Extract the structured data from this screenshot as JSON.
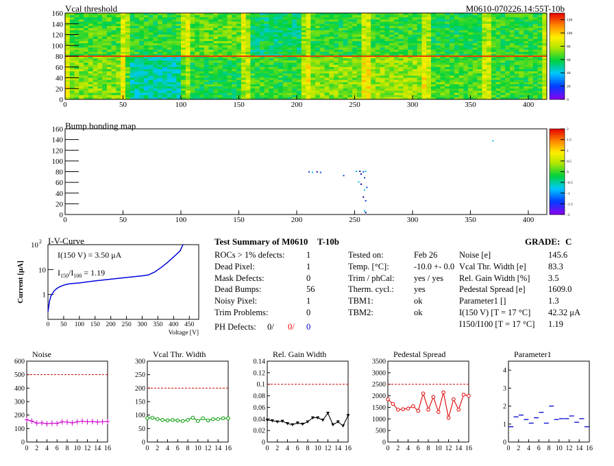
{
  "module_id": "M0610-070226.14:55T-10b",
  "vcal_map": {
    "title": "Vcal threshold",
    "x_ticks": [
      "0",
      "50",
      "100",
      "150",
      "200",
      "250",
      "300",
      "350",
      "400"
    ],
    "y_ticks": [
      "0",
      "20",
      "40",
      "60",
      "80",
      "100",
      "120",
      "140",
      "160"
    ],
    "palette_ticks": [
      "120",
      "100",
      "80",
      "60",
      "40",
      "20",
      "0"
    ]
  },
  "bump_map": {
    "title": "Bump bonding map",
    "x_ticks": [
      "0",
      "50",
      "100",
      "150",
      "200",
      "250",
      "300",
      "350",
      "400"
    ],
    "y_ticks": [
      "0",
      "20",
      "40",
      "60",
      "80",
      "100",
      "120",
      "140",
      "160"
    ],
    "palette_ticks": [
      "2",
      "1.5",
      "1",
      "0.5",
      "0",
      "-0.5",
      "-1",
      "-1.5",
      "-2"
    ]
  },
  "iv": {
    "title": "I-V-Curve",
    "ylabel": "Current [μA]",
    "xlabel": "Voltage [V]",
    "i150_label": "I(150 V) = 3.50 μA",
    "ratio_prefix": "I",
    "ratio_sub1": "150",
    "ratio_mid": "/I",
    "ratio_sub2": "100",
    "ratio_value": "=  1.19",
    "x_ticks": [
      "0",
      "50",
      "100",
      "150",
      "200",
      "250",
      "300",
      "350",
      "400",
      "450"
    ],
    "y_exp": "2"
  },
  "summary": {
    "title": "Test Summary of M0610",
    "tag": "T-10b",
    "grade_label": "GRADE:",
    "grade": "C",
    "left": [
      {
        "label": "ROCs > 1% defects:",
        "value": "1"
      },
      {
        "label": "Dead Pixel:",
        "value": "1"
      },
      {
        "label": "Mask Defects:",
        "value": "0"
      },
      {
        "label": "Dead Bumps:",
        "value": "56"
      },
      {
        "label": "Noisy Pixel:",
        "value": "1"
      },
      {
        "label": "Trim Problems:",
        "value": "0"
      }
    ],
    "ph_label": "PH Defects:",
    "ph_values": [
      "0/",
      "0/",
      "0"
    ],
    "ph_colors": [
      "#000000",
      "#ff0000",
      "#0000cc"
    ],
    "mid": [
      {
        "label": "Tested on:",
        "value": "Feb 26"
      },
      {
        "label": "Temp. [°C]:",
        "value": "-10.0 +- 0.0"
      },
      {
        "label": "Trim / phCal:",
        "value": "yes / yes"
      },
      {
        "label": "Therm. cycl.:",
        "value": "yes"
      },
      {
        "label": "TBM1:",
        "value": "ok"
      },
      {
        "label": "TBM2:",
        "value": "ok"
      }
    ],
    "right": [
      {
        "label": "Noise [e]",
        "value": "145.6"
      },
      {
        "label": "Vcal Thr. Width [e]",
        "value": "83.3"
      },
      {
        "label": "Rel. Gain Width [%]",
        "value": "3.5"
      },
      {
        "label": "Pedestal Spread [e]",
        "value": "1609.0"
      },
      {
        "label": "Parameter1 []",
        "value": "1.3"
      },
      {
        "label": "I(150 V) [T = 17 °C]",
        "value": "42.32 μA"
      },
      {
        "label": "I150/I100  [T = 17 °C]",
        "value": "1.19"
      }
    ]
  },
  "chart_data": [
    {
      "type": "heatmap",
      "title": "Vcal threshold",
      "x_range": [
        0,
        416
      ],
      "y_range": [
        0,
        160
      ],
      "z_range": [
        0,
        130
      ],
      "rocs_top_row_values": [
        65,
        62,
        68,
        55,
        62,
        63,
        60,
        62
      ],
      "rocs_bottom_row_values": [
        72,
        48,
        60,
        63,
        73,
        75,
        66,
        63
      ]
    },
    {
      "type": "scatter",
      "title": "Bump bonding map",
      "x_range": [
        0,
        416
      ],
      "y_range": [
        0,
        160
      ],
      "z_range": [
        -2,
        2
      ],
      "points": [
        [
          210,
          79
        ],
        [
          213,
          78
        ],
        [
          217,
          79
        ],
        [
          220,
          78
        ],
        [
          251,
          80
        ],
        [
          254,
          80
        ],
        [
          257,
          79
        ],
        [
          259,
          80
        ],
        [
          255,
          75
        ],
        [
          258,
          68
        ],
        [
          253,
          60
        ],
        [
          255,
          56
        ],
        [
          260,
          50
        ],
        [
          258,
          45
        ],
        [
          257,
          32
        ],
        [
          259,
          25
        ],
        [
          258,
          6
        ],
        [
          259,
          3
        ],
        [
          240,
          72
        ],
        [
          369,
          137
        ]
      ]
    },
    {
      "type": "line",
      "title": "I-V-Curve",
      "xlabel": "Voltage [V]",
      "ylabel": "Current [μA]",
      "yscale": "log",
      "x_ticks_range": [
        0,
        450
      ],
      "y_range": [
        0.1,
        100
      ],
      "points": [
        [
          0,
          0.2
        ],
        [
          5,
          0.55
        ],
        [
          10,
          0.9
        ],
        [
          20,
          1.4
        ],
        [
          30,
          1.8
        ],
        [
          40,
          2.1
        ],
        [
          50,
          2.35
        ],
        [
          60,
          2.55
        ],
        [
          70,
          2.7
        ],
        [
          100,
          2.9
        ],
        [
          150,
          3.5
        ],
        [
          200,
          4.1
        ],
        [
          250,
          4.8
        ],
        [
          300,
          5.6
        ],
        [
          320,
          6.1
        ],
        [
          340,
          8
        ],
        [
          360,
          12
        ],
        [
          380,
          19
        ],
        [
          400,
          32
        ],
        [
          420,
          55
        ],
        [
          430,
          100
        ]
      ]
    },
    {
      "type": "line",
      "title": "Noise",
      "x_range": [
        0,
        16
      ],
      "y_range": [
        0,
        600
      ],
      "limit": 500,
      "color": "#cc00cc",
      "x": [
        0,
        1,
        2,
        3,
        4,
        5,
        6,
        7,
        8,
        9,
        10,
        11,
        12,
        13,
        14,
        15,
        16
      ],
      "values": [
        165,
        155,
        140,
        142,
        135,
        140,
        138,
        150,
        148,
        142,
        150,
        155,
        150,
        152,
        148,
        150,
        152
      ]
    },
    {
      "type": "line",
      "title": "Vcal Thr. Width",
      "x_range": [
        0,
        16
      ],
      "y_range": [
        0,
        300
      ],
      "limit": 200,
      "color": "#009900",
      "x": [
        0,
        1,
        2,
        3,
        4,
        5,
        6,
        7,
        8,
        9,
        10,
        11,
        12,
        13,
        14,
        15,
        16
      ],
      "values": [
        88,
        90,
        85,
        82,
        80,
        82,
        80,
        78,
        82,
        90,
        78,
        88,
        80,
        85,
        85,
        88,
        88
      ]
    },
    {
      "type": "line",
      "title": "Rel. Gain Width",
      "x_range": [
        0,
        16
      ],
      "y_range": [
        0,
        0.14
      ],
      "limit": 0.1,
      "color": "#000000",
      "x": [
        0,
        1,
        2,
        3,
        4,
        5,
        6,
        7,
        8,
        9,
        10,
        11,
        12,
        13,
        14,
        15,
        16
      ],
      "values": [
        0.038,
        0.037,
        0.035,
        0.036,
        0.032,
        0.03,
        0.033,
        0.031,
        0.035,
        0.042,
        0.042,
        0.038,
        0.05,
        0.03,
        0.035,
        0.028,
        0.046
      ]
    },
    {
      "type": "line",
      "title": "Pedestal Spread",
      "x_range": [
        0,
        16
      ],
      "y_range": [
        0,
        3500
      ],
      "limit": 2500,
      "color": "#dd0000",
      "x": [
        0,
        1,
        2,
        3,
        4,
        5,
        6,
        7,
        8,
        9,
        10,
        11,
        12,
        13,
        14,
        15,
        16
      ],
      "values": [
        1850,
        1650,
        1400,
        1420,
        1450,
        1550,
        1350,
        2100,
        1400,
        1950,
        1300,
        2150,
        1050,
        1850,
        1400,
        2050,
        2000
      ]
    },
    {
      "type": "scatter",
      "title": "Parameter1",
      "x_range": [
        0,
        16
      ],
      "y_range": [
        0,
        4.5
      ],
      "color": "#0000cc",
      "x": [
        0.5,
        1.5,
        2.5,
        3.5,
        4.5,
        5.5,
        6.5,
        7.5,
        8.5,
        9.5,
        10.5,
        11.5,
        12.5,
        13.5,
        14.5,
        15.5
      ],
      "values": [
        0.85,
        1.4,
        1.5,
        1.25,
        1.05,
        1.35,
        1.65,
        1.05,
        2.0,
        1.25,
        1.3,
        1.3,
        1.45,
        1.1,
        1.3,
        0.85
      ]
    }
  ]
}
